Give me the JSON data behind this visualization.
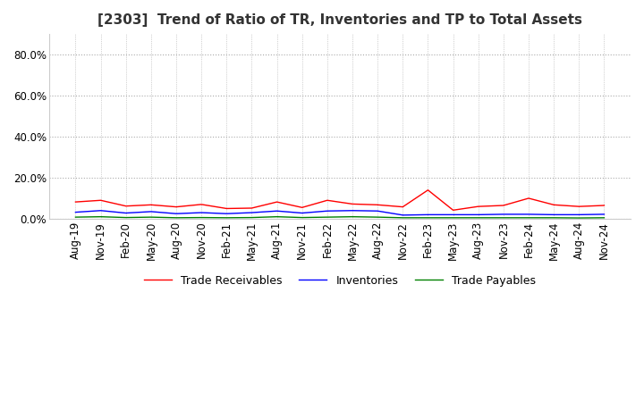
{
  "title": "[2303]  Trend of Ratio of TR, Inventories and TP to Total Assets",
  "ylim": [
    0,
    0.9
  ],
  "yticks": [
    0.0,
    0.2,
    0.4,
    0.6,
    0.8
  ],
  "ytick_labels": [
    "0.0%",
    "20.0%",
    "40.0%",
    "60.0%",
    "80.0%"
  ],
  "legend": [
    "Trade Receivables",
    "Inventories",
    "Trade Payables"
  ],
  "legend_colors": [
    "#FF0000",
    "#0000FF",
    "#008000"
  ],
  "background_color": "#FFFFFF",
  "grid_color": "#AAAAAA",
  "dates": [
    "Aug-19",
    "Nov-19",
    "Feb-20",
    "May-20",
    "Aug-20",
    "Nov-20",
    "Feb-21",
    "May-21",
    "Aug-21",
    "Nov-21",
    "Feb-22",
    "May-22",
    "Aug-22",
    "Nov-22",
    "Feb-23",
    "May-23",
    "Aug-23",
    "Nov-23",
    "Feb-24",
    "May-24",
    "Aug-24",
    "Nov-24"
  ],
  "trade_receivables": [
    0.082,
    0.09,
    0.062,
    0.068,
    0.058,
    0.07,
    0.05,
    0.052,
    0.082,
    0.055,
    0.09,
    0.072,
    0.068,
    0.058,
    0.14,
    0.042,
    0.06,
    0.065,
    0.1,
    0.068,
    0.06,
    0.065
  ],
  "inventories": [
    0.032,
    0.04,
    0.028,
    0.035,
    0.025,
    0.03,
    0.025,
    0.03,
    0.038,
    0.028,
    0.038,
    0.04,
    0.038,
    0.018,
    0.02,
    0.02,
    0.02,
    0.022,
    0.022,
    0.02,
    0.02,
    0.022
  ],
  "trade_payables": [
    0.008,
    0.01,
    0.006,
    0.008,
    0.005,
    0.006,
    0.005,
    0.006,
    0.01,
    0.006,
    0.008,
    0.01,
    0.008,
    0.005,
    0.005,
    0.005,
    0.005,
    0.005,
    0.005,
    0.005,
    0.004,
    0.005
  ],
  "title_fontsize": 11,
  "tick_fontsize": 8.5,
  "legend_fontsize": 9
}
